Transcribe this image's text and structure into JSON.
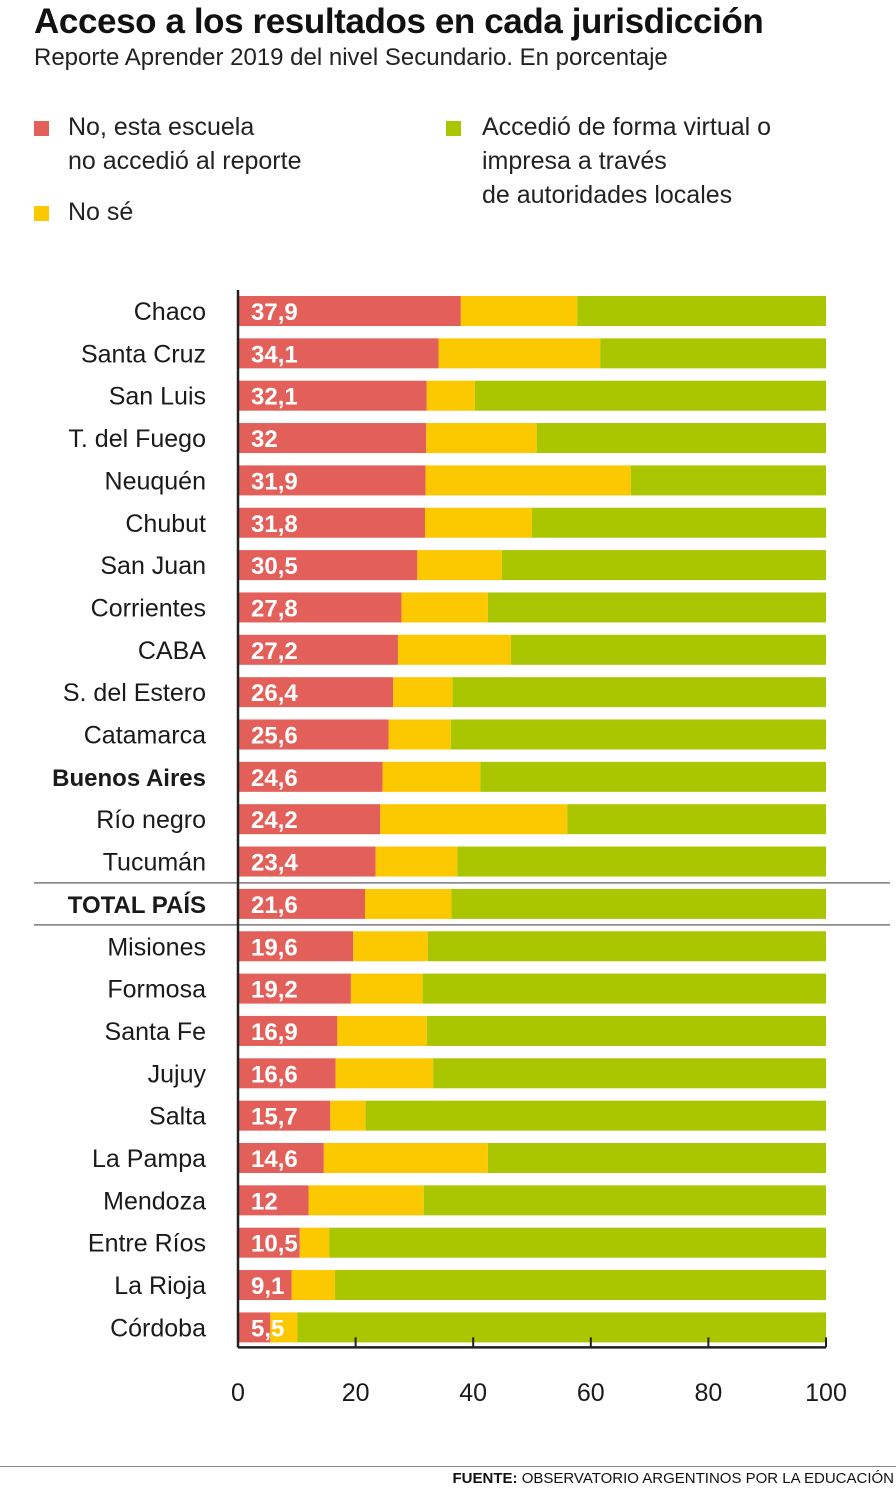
{
  "header": {
    "title": "Acceso a los resultados en cada jurisdicción",
    "subtitle": "Reporte Aprender 2019 del nivel Secundario. En porcentaje"
  },
  "legend": [
    {
      "name": "No, esta escuela\nno accedió al reporte",
      "color": "#e3605a"
    },
    {
      "name": "No sé",
      "color": "#fcc800"
    },
    {
      "name": "Accedió de forma virtual o\nimpresa a través\nde autoridades locales",
      "color": "#a9c600"
    }
  ],
  "footer": {
    "source_label": "FUENTE:",
    "source_text": "OBSERVATORIO ARGENTINOS POR LA EDUCACIÓN"
  },
  "chart_data": {
    "type": "bar",
    "orientation": "horizontal",
    "stacked": true,
    "xlim": [
      0,
      100
    ],
    "xticks": [
      "0",
      "20",
      "40",
      "60",
      "80",
      "100"
    ],
    "categories": [
      "Chaco",
      "Santa Cruz",
      "San Luis",
      "T. del Fuego",
      "Neuquén",
      "Chubut",
      "San Juan",
      "Corrientes",
      "CABA",
      "S. del Estero",
      "Catamarca",
      "Buenos Aires",
      "Río negro",
      "Tucumán",
      "TOTAL PAÍS",
      "Misiones",
      "Formosa",
      "Santa Fe",
      "Jujuy",
      "Salta",
      "La Pampa",
      "Mendoza",
      "Entre Ríos",
      "La Rioja",
      "Córdoba"
    ],
    "highlight": [
      "Buenos Aires",
      "TOTAL PAÍS"
    ],
    "series": [
      {
        "name": "No, esta escuela no accedió al reporte",
        "color": "#e3605a",
        "values": [
          37.9,
          34.1,
          32.1,
          32,
          31.9,
          31.8,
          30.5,
          27.8,
          27.2,
          26.4,
          25.6,
          24.6,
          24.2,
          23.4,
          21.6,
          19.6,
          19.2,
          16.9,
          16.6,
          15.7,
          14.6,
          12,
          10.5,
          9.1,
          5.5
        ],
        "labels": [
          "37,9",
          "34,1",
          "32,1",
          "32",
          "31,9",
          "31,8",
          "30,5",
          "27,8",
          "27,2",
          "26,4",
          "25,6",
          "24,6",
          "24,2",
          "23,4",
          "21,6",
          "19,6",
          "19,2",
          "16,9",
          "16,6",
          "15,7",
          "14,6",
          "12",
          "10,5",
          "9,1",
          "5,5"
        ]
      },
      {
        "name": "No sé",
        "color": "#fcc800",
        "values": [
          19.8,
          27.5,
          8.2,
          18.8,
          34.9,
          18.2,
          14.4,
          14.7,
          19.2,
          10.1,
          10.6,
          16.6,
          31.8,
          13.9,
          14.7,
          12.7,
          12.2,
          15.2,
          16.6,
          6,
          27.9,
          19.6,
          5,
          7.4,
          4.6
        ]
      },
      {
        "name": "Accedió de forma virtual o impresa a través de autoridades locales",
        "color": "#a9c600",
        "values": [
          42.3,
          38.4,
          59.7,
          49.2,
          33.2,
          50,
          55.1,
          57.5,
          53.6,
          63.5,
          63.8,
          58.8,
          44,
          62.7,
          63.7,
          67.7,
          68.6,
          67.9,
          66.8,
          78.3,
          57.5,
          68.4,
          84.5,
          83.5,
          89.9
        ]
      }
    ]
  }
}
